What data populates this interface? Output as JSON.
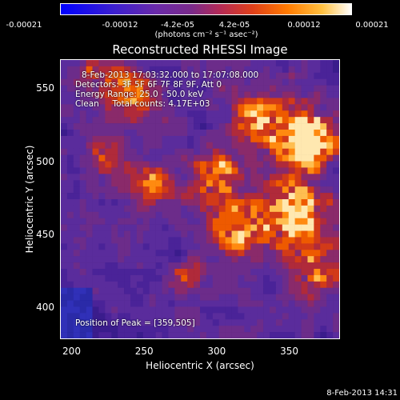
{
  "colorbar": {
    "ticks": [
      "-0.00021",
      "-0.00012",
      "-4.2e-05",
      "4.2e-05",
      "0.00012",
      "0.00021"
    ],
    "unit": "(photons cm⁻² s⁻¹ asec⁻²)",
    "range": [
      -0.00021,
      0.00021
    ]
  },
  "chart_data": {
    "type": "heatmap",
    "title": "Reconstructed RHESSI Image",
    "xlabel": "Heliocentric X (arcsec)",
    "ylabel": "Heliocentric Y (arcsec)",
    "xlim": [
      192,
      385
    ],
    "ylim": [
      378,
      570
    ],
    "xticks": [
      200,
      250,
      300,
      350
    ],
    "yticks": [
      400,
      450,
      500,
      550
    ],
    "peak": [
      359,
      505
    ],
    "annotations": [
      "8-Feb-2013 17:03:32.000 to 17:07:08.000",
      "Detectors: 3F 5F 6F 7F 8F 9F, Att 0",
      "Energy Range: 25.0 - 50.0 keV",
      "Clean     Total counts: 4.17E+03"
    ],
    "peak_label": "Position of Peak = [359,505]"
  },
  "footer": "8-Feb-2013 14:31"
}
